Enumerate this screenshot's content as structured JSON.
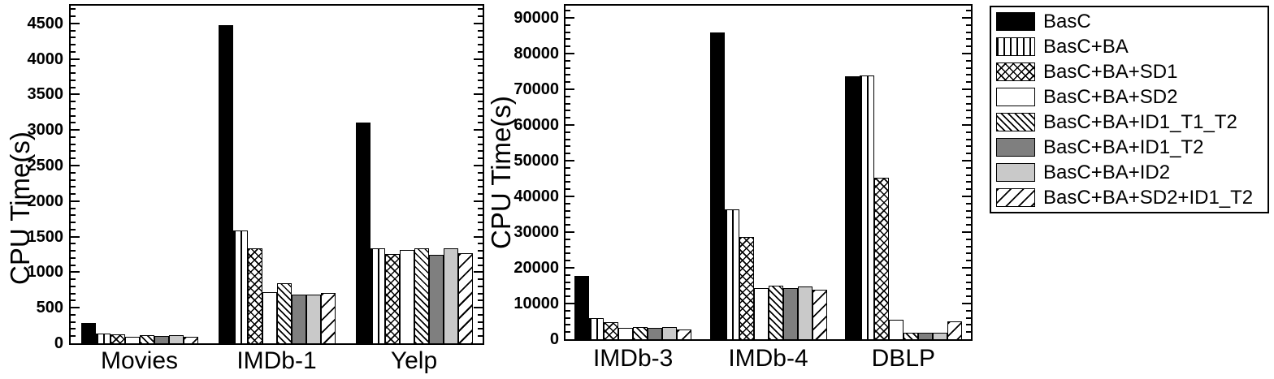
{
  "figure": {
    "description": "Two grouped bar charts comparing CPU time of algorithm variants across datasets, with a shared legend",
    "background": "#ffffff"
  },
  "colors": {
    "black": "#000000",
    "dark_gray": "#7f7f7f",
    "light_gray": "#c9c9c9",
    "white": "#ffffff"
  },
  "legend": {
    "entries": [
      {
        "label": "BasC",
        "pattern": "solid-black"
      },
      {
        "label": "BasC+BA",
        "pattern": "vlines"
      },
      {
        "label": "BasC+BA+SD1",
        "pattern": "crosshatch"
      },
      {
        "label": "BasC+BA+SD2",
        "pattern": "white"
      },
      {
        "label": "BasC+BA+ID1_T1_T2",
        "pattern": "bslash-dense"
      },
      {
        "label": "BasC+BA+ID1_T2",
        "pattern": "dark-gray"
      },
      {
        "label": "BasC+BA+ID2",
        "pattern": "light-gray"
      },
      {
        "label": "BasC+BA+SD2+ID1_T2",
        "pattern": "fslash"
      }
    ],
    "position": "top-right-outside"
  },
  "chart_data": [
    {
      "type": "bar",
      "title": "",
      "xlabel": "",
      "ylabel": "CPU Time(s)",
      "categories": [
        "Movies",
        "IMDb-1",
        "Yelp"
      ],
      "ylim": [
        0,
        4500
      ],
      "ytick_step": 500,
      "yminor_step": 100,
      "ytick_labels": [
        "0",
        "500",
        "1000",
        "1500",
        "2000",
        "2500",
        "3000",
        "3500",
        "4000",
        "4500"
      ],
      "grid": false,
      "series": [
        {
          "name": "BasC",
          "pattern": "solid-black",
          "values": [
            280,
            4480,
            3100
          ]
        },
        {
          "name": "BasC+BA",
          "pattern": "vlines",
          "values": [
            140,
            1590,
            1330
          ]
        },
        {
          "name": "BasC+BA+SD1",
          "pattern": "crosshatch",
          "values": [
            125,
            1330,
            1260
          ]
        },
        {
          "name": "BasC+BA+SD2",
          "pattern": "white",
          "values": [
            90,
            720,
            1315
          ]
        },
        {
          "name": "BasC+BA+ID1_T1_T2",
          "pattern": "bslash-dense",
          "values": [
            115,
            840,
            1330
          ]
        },
        {
          "name": "BasC+BA+ID1_T2",
          "pattern": "dark-gray",
          "values": [
            100,
            680,
            1240
          ]
        },
        {
          "name": "BasC+BA+ID2",
          "pattern": "light-gray",
          "values": [
            110,
            690,
            1340
          ]
        },
        {
          "name": "BasC+BA+SD2+ID1_T2",
          "pattern": "fslash",
          "values": [
            90,
            705,
            1270
          ]
        }
      ]
    },
    {
      "type": "bar",
      "title": "",
      "xlabel": "",
      "ylabel": "CPU Time(s)",
      "categories": [
        "IMDb-3",
        "IMDb-4",
        "DBLP"
      ],
      "ylim": [
        0,
        90000
      ],
      "ytick_step": 10000,
      "yminor_step": 2000,
      "ytick_labels": [
        "0",
        "10000",
        "20000",
        "30000",
        "40000",
        "50000",
        "60000",
        "70000",
        "80000",
        "90000"
      ],
      "grid": false,
      "series": [
        {
          "name": "BasC",
          "pattern": "solid-black",
          "values": [
            17800,
            86000,
            73700
          ]
        },
        {
          "name": "BasC+BA",
          "pattern": "vlines",
          "values": [
            5800,
            36300,
            73900
          ]
        },
        {
          "name": "BasC+BA+SD1",
          "pattern": "crosshatch",
          "values": [
            4800,
            28600,
            45200
          ]
        },
        {
          "name": "BasC+BA+SD2",
          "pattern": "white",
          "values": [
            3200,
            14300,
            5400
          ]
        },
        {
          "name": "BasC+BA+ID1_T1_T2",
          "pattern": "bslash-dense",
          "values": [
            3400,
            15000,
            1900
          ]
        },
        {
          "name": "BasC+BA+ID1_T2",
          "pattern": "dark-gray",
          "values": [
            3200,
            14300,
            1900
          ]
        },
        {
          "name": "BasC+BA+ID2",
          "pattern": "light-gray",
          "values": [
            3300,
            14700,
            1900
          ]
        },
        {
          "name": "BasC+BA+SD2+ID1_T2",
          "pattern": "fslash",
          "values": [
            2700,
            13900,
            4900
          ]
        }
      ]
    }
  ]
}
